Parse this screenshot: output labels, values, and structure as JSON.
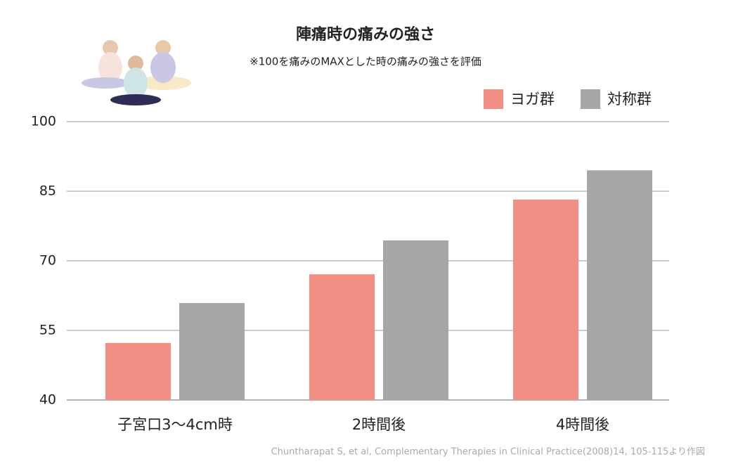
{
  "chart_data": {
    "type": "bar",
    "title": "陣痛時の痛みの強さ",
    "subtitle": "※100を痛みのMAXとした時の痛みの強さを評価",
    "categories": [
      "子宮口3〜4cm時",
      "2時間後",
      "4時間後"
    ],
    "series": [
      {
        "name": "ヨガ群",
        "color": "#f28f85",
        "values": [
          52.3,
          67.1,
          83.2
        ]
      },
      {
        "name": "対称群",
        "color": "#a6a6a6",
        "values": [
          60.9,
          74.4,
          89.5
        ]
      }
    ],
    "ylim": [
      40,
      100
    ],
    "yticks": [
      40,
      55,
      70,
      85,
      100
    ],
    "grid": true,
    "source": "Chuntharapat S, et al, Complementary Therapies in Clinical Practice(2008)14, 105-115より作図"
  }
}
